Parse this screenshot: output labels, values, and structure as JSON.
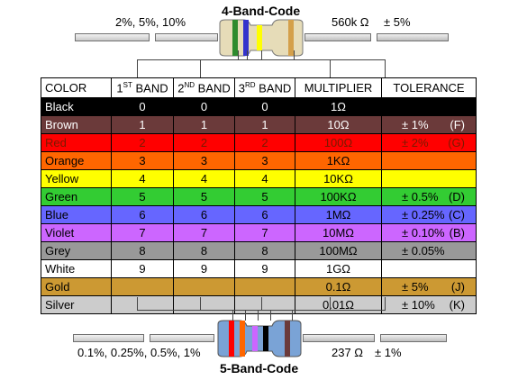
{
  "top": {
    "title": "4-Band-Code",
    "left_caption": "2%, 5%, 10%",
    "right_value": "560k Ω",
    "right_tol": "± 5%"
  },
  "bottom": {
    "title": "5-Band-Code",
    "left_caption": "0.1%, 0.25%, 0.5%, 1%",
    "right_value": "237 Ω",
    "right_tol": "± 1%"
  },
  "headers": {
    "color": "COLOR",
    "band1_num": "1",
    "band1_sup": "ST",
    "band1_txt": " BAND",
    "band2_num": "2",
    "band2_sup": "ND",
    "band2_txt": " BAND",
    "band3_num": "3",
    "band3_sup": "RD",
    "band3_txt": " BAND",
    "multiplier": "MULTIPLIER",
    "tolerance": "TOLERANCE"
  },
  "rows": [
    {
      "color": "Black",
      "b1": "0",
      "b2": "0",
      "b3": "0",
      "mult": "1Ω",
      "tol": "",
      "code": "",
      "bg": "#000000",
      "fg": "#ffffff"
    },
    {
      "color": "Brown",
      "b1": "1",
      "b2": "1",
      "b3": "1",
      "mult": "10Ω",
      "tol": "± 1%",
      "code": "(F)",
      "bg": "#6b3a3a",
      "fg": "#ffffff"
    },
    {
      "color": "Red",
      "b1": "2",
      "b2": "2",
      "b3": "2",
      "mult": "100Ω",
      "tol": "± 2%",
      "code": "(G)",
      "bg": "#ff0000",
      "fg": "#7a1a00"
    },
    {
      "color": "Orange",
      "b1": "3",
      "b2": "3",
      "b3": "3",
      "mult": "1KΩ",
      "tol": "",
      "code": "",
      "bg": "#ff6600",
      "fg": "#000000"
    },
    {
      "color": "Yellow",
      "b1": "4",
      "b2": "4",
      "b3": "4",
      "mult": "10KΩ",
      "tol": "",
      "code": "",
      "bg": "#ffff00",
      "fg": "#000000"
    },
    {
      "color": "Green",
      "b1": "5",
      "b2": "5",
      "b3": "5",
      "mult": "100KΩ",
      "tol": "± 0.5%",
      "code": "(D)",
      "bg": "#33cc33",
      "fg": "#000000"
    },
    {
      "color": "Blue",
      "b1": "6",
      "b2": "6",
      "b3": "6",
      "mult": "1MΩ",
      "tol": "± 0.25%",
      "code": "(C)",
      "bg": "#6666ff",
      "fg": "#000000"
    },
    {
      "color": "Violet",
      "b1": "7",
      "b2": "7",
      "b3": "7",
      "mult": "10MΩ",
      "tol": "± 0.10%",
      "code": "(B)",
      "bg": "#cc66ff",
      "fg": "#000000"
    },
    {
      "color": "Grey",
      "b1": "8",
      "b2": "8",
      "b3": "8",
      "mult": "100MΩ",
      "tol": "± 0.05%",
      "code": "",
      "bg": "#999999",
      "fg": "#000000"
    },
    {
      "color": "White",
      "b1": "9",
      "b2": "9",
      "b3": "9",
      "mult": "1GΩ",
      "tol": "",
      "code": "",
      "bg": "#ffffff",
      "fg": "#000000"
    },
    {
      "color": "Gold",
      "b1": "",
      "b2": "",
      "b3": "",
      "mult": "0.1Ω",
      "tol": "± 5%",
      "code": "(J)",
      "bg": "#cc9933",
      "fg": "#000000"
    },
    {
      "color": "Silver",
      "b1": "",
      "b2": "",
      "b3": "",
      "mult": "0.01Ω",
      "tol": "± 10%",
      "code": "(K)",
      "bg": "#cccccc",
      "fg": "#000000"
    }
  ],
  "resistor_top": {
    "body_color": "#e6dcb8",
    "band_colors": [
      "#2e8b2e",
      "#3333cc",
      "#ffff00",
      "#d4a04a"
    ]
  },
  "resistor_bottom": {
    "body_color": "#7aa3d6",
    "band_colors": [
      "#ff0000",
      "#ff6600",
      "#cc66ff",
      "#000000",
      "#6b3a3a"
    ]
  }
}
